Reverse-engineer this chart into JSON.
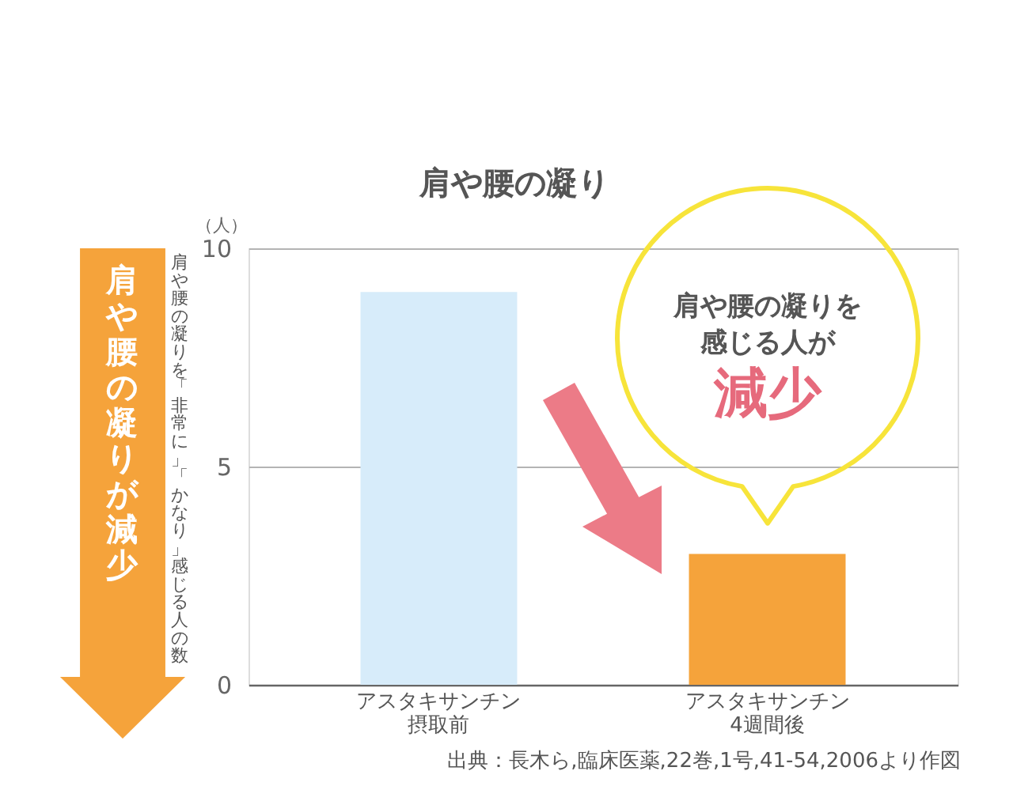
{
  "chart_data": {
    "type": "bar",
    "title": "肩や腰の凝り",
    "ylabel": "肩や腰の凝りを「非常に」「かなり」感じる人の数",
    "categories": [
      "アスタキサンチン摂取前",
      "アスタキサンチン4週間後"
    ],
    "values": [
      9,
      3
    ],
    "colors": [
      "#d7ecfa",
      "#f5a33b"
    ],
    "ylim": [
      0,
      10
    ],
    "yticks": [
      0,
      5,
      10
    ],
    "grid": "y",
    "annotations": [
      "（人）",
      "肩や腰の凝りを感じる人が",
      "減少",
      "肩や腰の凝りが減少",
      "出典：長木ら,臨床医薬,22巻,1号,41-54,2006より作図"
    ]
  }
}
